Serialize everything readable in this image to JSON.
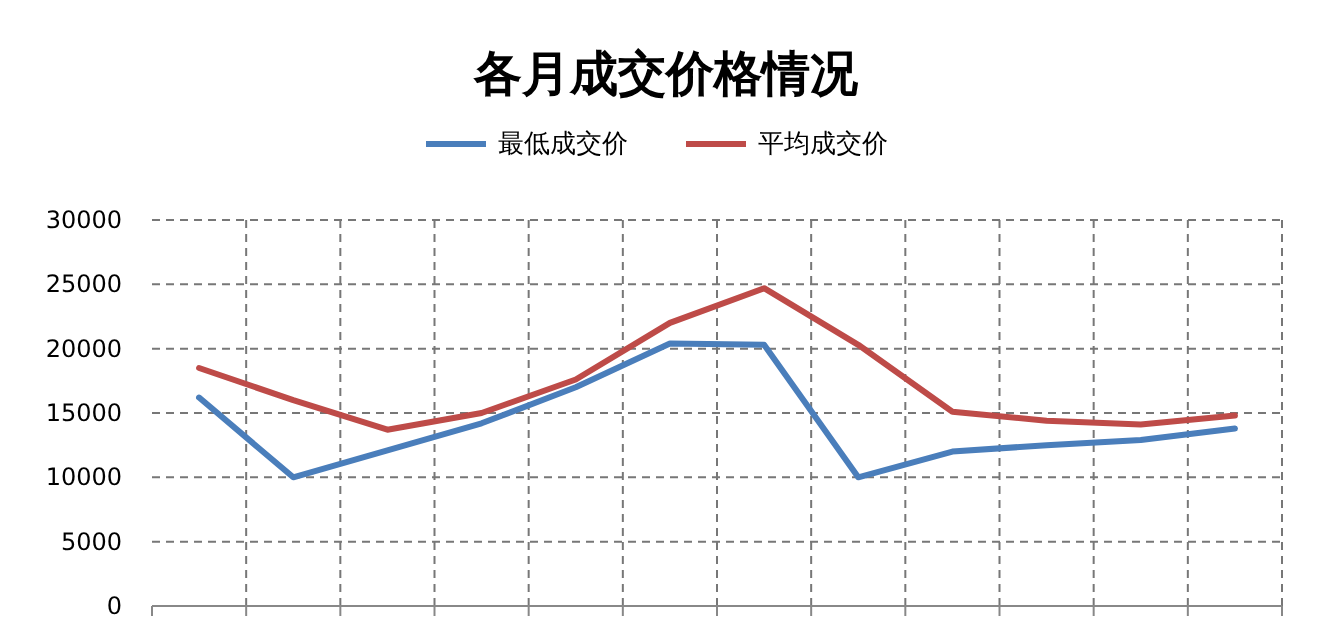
{
  "chart_data": {
    "type": "line",
    "title": "各月成交价格情况",
    "categories": [
      null,
      null,
      null,
      null,
      null,
      null,
      null,
      null,
      null,
      null,
      null,
      null
    ],
    "series": [
      {
        "name": "最低成交价",
        "color": "#4a7ebb",
        "values": [
          16200,
          10000,
          12100,
          14200,
          17000,
          20400,
          20300,
          10000,
          12000,
          12500,
          12900,
          13800
        ]
      },
      {
        "name": "平均成交价",
        "color": "#be4b48",
        "values": [
          18500,
          16000,
          13700,
          15000,
          17600,
          22000,
          24700,
          20300,
          15100,
          14400,
          14100,
          14800
        ]
      }
    ],
    "ylim": [
      0,
      30000
    ],
    "yticks": [
      0,
      5000,
      10000,
      15000,
      20000,
      25000,
      30000
    ],
    "grid": true,
    "legend": "top",
    "marker": "none",
    "line_style": "solid"
  }
}
